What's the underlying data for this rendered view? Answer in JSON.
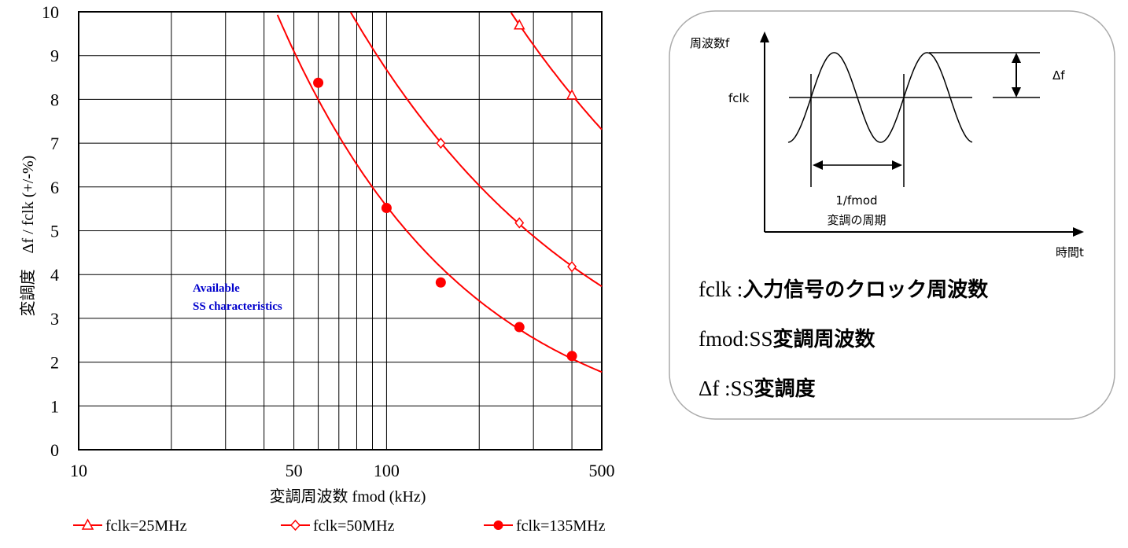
{
  "chart_data": {
    "type": "line",
    "title": "",
    "xlabel": "変調周波数 fmod (kHz)",
    "ylabel": "変調度　Δf / fclk  (+/-%)",
    "x_scale": "log",
    "xlim": [
      10,
      500
    ],
    "ylim": [
      0,
      10
    ],
    "x_ticks": [
      10,
      50,
      100,
      500
    ],
    "y_ticks": [
      0,
      1,
      2,
      3,
      4,
      5,
      6,
      7,
      8,
      9,
      10
    ],
    "grid": true,
    "legend_position": "bottom",
    "series": [
      {
        "name": "fclk=25MHz",
        "marker": "triangle-open",
        "x": [
          270,
          400
        ],
        "y": [
          9.7,
          8.1
        ]
      },
      {
        "name": "fclk=50MHz",
        "marker": "diamond-open",
        "x": [
          150,
          270,
          400
        ],
        "y": [
          7.0,
          5.18,
          4.18
        ]
      },
      {
        "name": "fclk=135MHz",
        "marker": "circle-filled",
        "x": [
          60,
          100,
          150,
          270,
          400
        ],
        "y": [
          8.38,
          5.52,
          3.82,
          2.8,
          2.14
        ]
      }
    ],
    "annotation": {
      "line1": "Available",
      "line2": "SS characteristics"
    },
    "color": "#ff0000"
  },
  "diagram": {
    "freq_axis_label": "周波数f",
    "fclk_label": "fclk",
    "delta_label": "Δf",
    "period_label": "1/fmod",
    "period_caption": "変調の周期",
    "time_axis_label": "時間t",
    "def1_term": "fclk  :",
    "def1_desc": "入力信号のクロック周波数",
    "def2_term": "fmod:SS",
    "def2_desc": "変調周波数",
    "def3_term": "Δf    :SS",
    "def3_desc": "変調度"
  }
}
